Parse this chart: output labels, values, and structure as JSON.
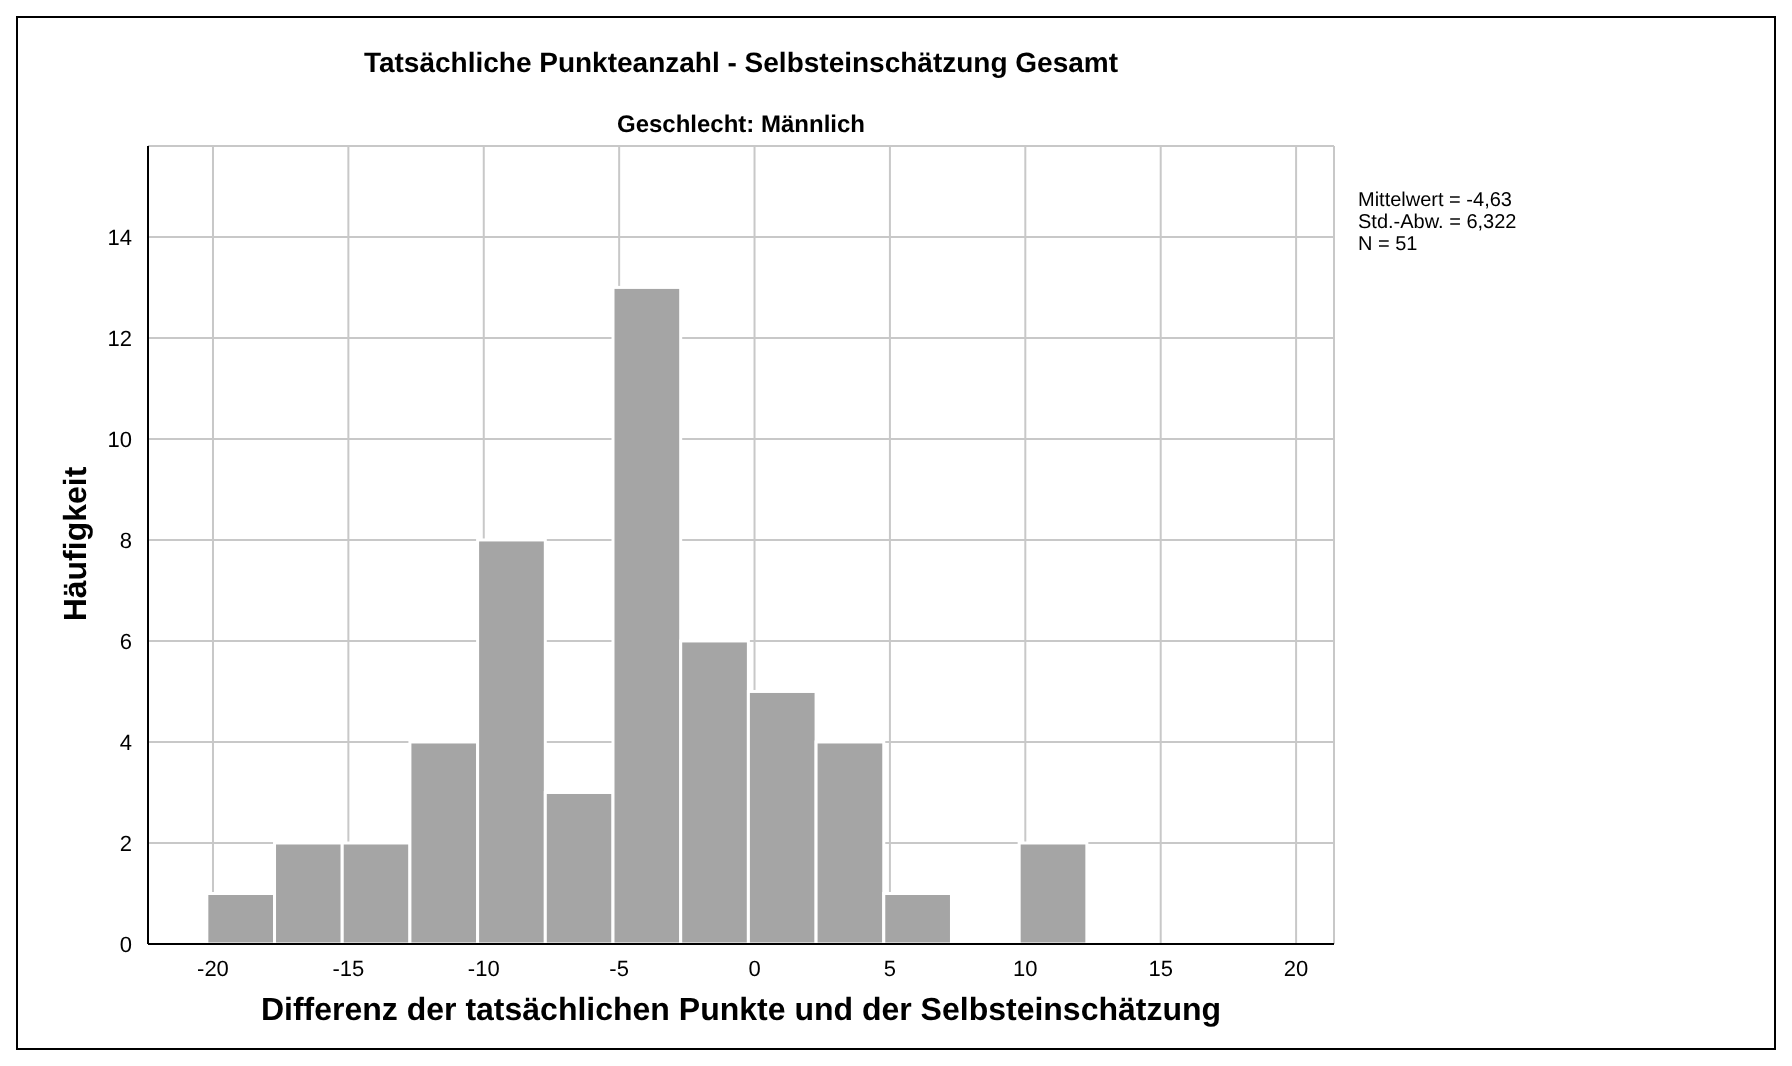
{
  "chart_data": {
    "type": "histogram",
    "title": "Tatsächliche Punkteanzahl - Selbsteinschätzung Gesamt",
    "subtitle": "Geschlecht: Männlich",
    "xlabel": "Differenz der tatsächlichen Punkte und der Selbsteinschätzung",
    "ylabel": "Häufigkeit",
    "bins": [
      -20.25,
      -17.75,
      -15.25,
      -12.75,
      -10.25,
      -7.75,
      -5.25,
      -2.75,
      -0.25,
      2.25,
      4.75,
      7.25,
      9.75,
      12.25
    ],
    "values": [
      1,
      2,
      2,
      4,
      8,
      3,
      13,
      6,
      5,
      4,
      1,
      0,
      2
    ],
    "color": "#a5a5a5",
    "xlim": [
      -22.4,
      21.4
    ],
    "xticks": [
      -20,
      -15,
      -10,
      -5,
      0,
      5,
      10,
      15,
      20
    ],
    "ylim": [
      0,
      15.8
    ],
    "yticks": [
      0,
      2,
      4,
      6,
      8,
      10,
      12,
      14
    ],
    "grid": true,
    "annotations": [
      "Mittelwert = -4,63",
      "Std.-Abw. = 6,322",
      "N = 51"
    ]
  }
}
